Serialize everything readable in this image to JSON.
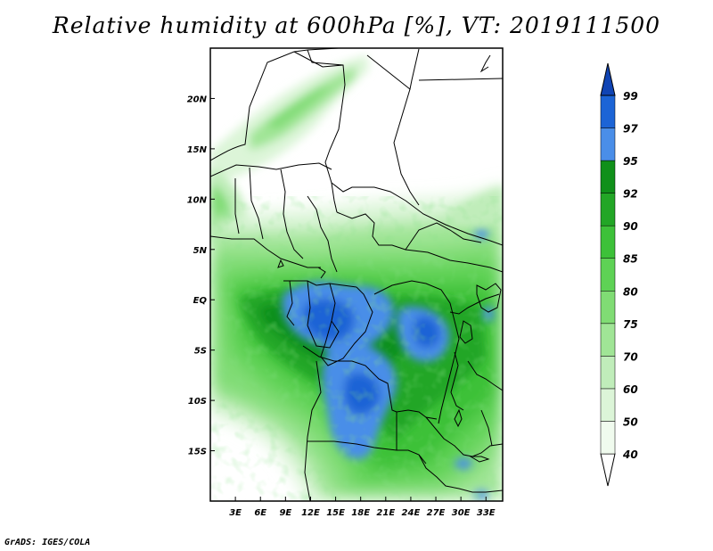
{
  "title": "Relative humidity at 600hPa [%], VT: 2019111500",
  "credit": "GrADS: IGES/COLA",
  "chart_data": {
    "type": "heatmap",
    "variable": "Relative humidity",
    "level": "600hPa",
    "units": "%",
    "valid_time": "2019111500",
    "lon_range": [
      0,
      35
    ],
    "lat_range": [
      -20,
      25
    ],
    "x_ticks": [
      "3E",
      "6E",
      "9E",
      "12E",
      "15E",
      "18E",
      "21E",
      "24E",
      "27E",
      "30E",
      "33E"
    ],
    "x_tick_values": [
      3,
      6,
      9,
      12,
      15,
      18,
      21,
      24,
      27,
      30,
      33
    ],
    "y_ticks": [
      "20N",
      "15N",
      "10N",
      "5N",
      "EQ",
      "5S",
      "10S",
      "15S"
    ],
    "y_tick_values": [
      20,
      15,
      10,
      5,
      0,
      -5,
      -10,
      -15
    ],
    "colorbar": {
      "levels": [
        "40",
        "50",
        "60",
        "70",
        "75",
        "80",
        "85",
        "90",
        "92",
        "95",
        "97",
        "99"
      ],
      "colors": [
        "#f0fbee",
        "#dcf5d8",
        "#c0edba",
        "#a0e596",
        "#80dc74",
        "#5ed255",
        "#3dc139",
        "#22a626",
        "#10901a",
        "#4a8ee8",
        "#1c64d6",
        "#1044b4"
      ]
    }
  }
}
